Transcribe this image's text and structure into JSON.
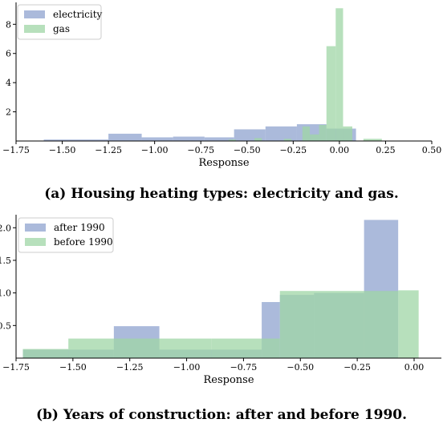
{
  "chart_data": [
    {
      "type": "histogram",
      "caption": "(a) Housing heating types: electricity and gas.",
      "xlabel": "Response",
      "ylabel": "",
      "xlim": [
        -1.75,
        0.5
      ],
      "ylim": [
        0,
        9.5
      ],
      "xticks": [
        "−1.75",
        "−1.50",
        "−1.25",
        "−1.00",
        "−0.75",
        "−0.50",
        "−0.25",
        "0.00",
        "0.25",
        "0.50"
      ],
      "yticks": [
        "2",
        "4",
        "6",
        "8"
      ],
      "legend_position": "top-left",
      "colors": {
        "electricity": "#8fa3cf",
        "gas": "#9fd5a6"
      },
      "series": [
        {
          "name": "electricity",
          "bars": [
            {
              "x0": -1.6,
              "x1": -1.25,
              "y": 0.1
            },
            {
              "x0": -1.25,
              "x1": -1.07,
              "y": 0.5
            },
            {
              "x0": -1.07,
              "x1": -0.9,
              "y": 0.25
            },
            {
              "x0": -0.9,
              "x1": -0.73,
              "y": 0.3
            },
            {
              "x0": -0.73,
              "x1": -0.57,
              "y": 0.25
            },
            {
              "x0": -0.57,
              "x1": -0.4,
              "y": 0.8
            },
            {
              "x0": -0.4,
              "x1": -0.23,
              "y": 1.0
            },
            {
              "x0": -0.23,
              "x1": -0.07,
              "y": 1.15
            },
            {
              "x0": -0.07,
              "x1": 0.09,
              "y": 0.85
            }
          ]
        },
        {
          "name": "gas",
          "bars": [
            {
              "x0": -0.6,
              "x1": -0.56,
              "y": 0.1
            },
            {
              "x0": -0.46,
              "x1": -0.42,
              "y": 0.2
            },
            {
              "x0": -0.3,
              "x1": -0.26,
              "y": 0.15
            },
            {
              "x0": -0.2,
              "x1": -0.16,
              "y": 1.0
            },
            {
              "x0": -0.16,
              "x1": -0.11,
              "y": 0.45
            },
            {
              "x0": -0.11,
              "x1": -0.07,
              "y": 1.1
            },
            {
              "x0": -0.07,
              "x1": -0.02,
              "y": 6.5
            },
            {
              "x0": -0.02,
              "x1": 0.02,
              "y": 9.1
            },
            {
              "x0": 0.02,
              "x1": 0.07,
              "y": 1.0
            },
            {
              "x0": 0.13,
              "x1": 0.23,
              "y": 0.15
            }
          ]
        }
      ]
    },
    {
      "type": "histogram",
      "caption": "(b) Years of construction: after and before 1990.",
      "xlabel": "Response",
      "ylabel": "",
      "xlim": [
        -1.75,
        0.12
      ],
      "ylim": [
        0,
        2.2
      ],
      "xticks": [
        "−1.75",
        "−1.50",
        "−1.25",
        "−1.00",
        "−0.75",
        "−0.50",
        "−0.25",
        "0.00"
      ],
      "yticks": [
        "0.5",
        "1.0",
        "1.5",
        "2.0"
      ],
      "legend_position": "top-left",
      "colors": {
        "after 1990": "#8fa3cf",
        "before 1990": "#9fd5a6"
      },
      "series": [
        {
          "name": "after 1990",
          "bars": [
            {
              "x0": -1.72,
              "x1": -1.32,
              "y": 0.13
            },
            {
              "x0": -1.32,
              "x1": -1.12,
              "y": 0.49
            },
            {
              "x0": -1.12,
              "x1": -0.67,
              "y": 0.13
            },
            {
              "x0": -0.67,
              "x1": -0.59,
              "y": 0.86
            },
            {
              "x0": -0.59,
              "x1": -0.44,
              "y": 0.97
            },
            {
              "x0": -0.44,
              "x1": -0.22,
              "y": 1.0
            },
            {
              "x0": -0.22,
              "x1": -0.07,
              "y": 2.12
            }
          ]
        },
        {
          "name": "before 1990",
          "bars": [
            {
              "x0": -1.72,
              "x1": -1.52,
              "y": 0.14
            },
            {
              "x0": -1.52,
              "x1": -0.89,
              "y": 0.3
            },
            {
              "x0": -0.89,
              "x1": -0.67,
              "y": 0.3
            },
            {
              "x0": -0.67,
              "x1": -0.59,
              "y": 0.3
            },
            {
              "x0": -0.59,
              "x1": -0.07,
              "y": 1.03
            },
            {
              "x0": -0.07,
              "x1": 0.02,
              "y": 1.04
            }
          ]
        }
      ]
    }
  ]
}
